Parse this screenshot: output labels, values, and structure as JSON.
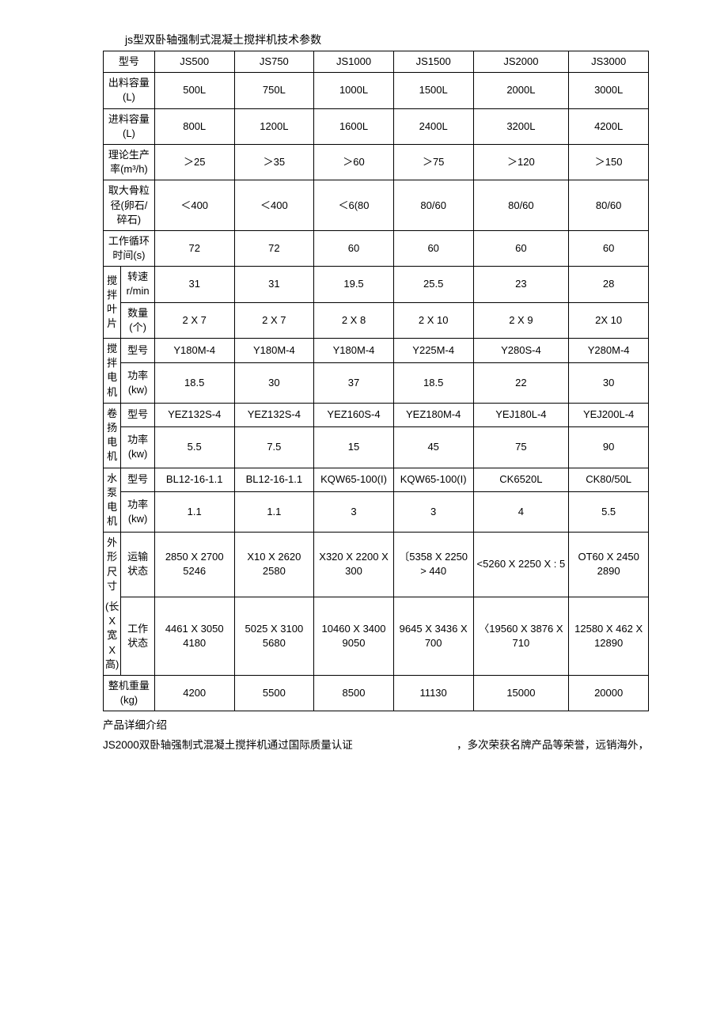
{
  "title": "js型双卧轴强制式混凝土搅拌机技术参数",
  "columns": {
    "label": "型号",
    "models": [
      "JS500",
      "JS750",
      "JS1000",
      "JS1500",
      "JS2000",
      "JS3000"
    ]
  },
  "rows": {
    "out_cap": {
      "label": "出料容量(L)",
      "v": [
        "500L",
        "750L",
        "1000L",
        "1500L",
        "2000L",
        "3000L"
      ]
    },
    "in_cap": {
      "label": "进料容量(L)",
      "v": [
        "800L",
        "1200L",
        "1600L",
        "2400L",
        "3200L",
        "4200L"
      ]
    },
    "theo": {
      "label": "理论生产率(m³/h)",
      "v": [
        "＞25",
        "＞35",
        "＞60",
        "＞75",
        "＞120",
        "＞150"
      ]
    },
    "agg": {
      "label": "取大骨粒径(卵石/碎石)",
      "v": [
        "＜400",
        "＜400",
        "＜6(80",
        "80/60",
        "80/60",
        "80/60"
      ]
    },
    "cycle": {
      "label": "工作循环时间(s)",
      "v": [
        "72",
        "72",
        "60",
        "60",
        "60",
        "60"
      ]
    },
    "blade_group": "搅拌叶片",
    "blade_speed": {
      "label": "转速r/min",
      "v": [
        "31",
        "31",
        "19.5",
        "25.5",
        "23",
        "28"
      ]
    },
    "blade_count": {
      "label": "数量(个)",
      "v": [
        "2 X 7",
        "2 X 7",
        "2 X 8",
        "2 X 10",
        "2 X 9",
        "2X 10"
      ]
    },
    "mix_motor_group": "搅拌电机",
    "mix_motor_model": {
      "label": "型号",
      "v": [
        "Y180M-4",
        "Y180M-4",
        "Y180M-4",
        "Y225M-4",
        "Y280S-4",
        "Y280M-4"
      ]
    },
    "mix_motor_power": {
      "label": "功率(kw)",
      "v": [
        "18.5",
        "30",
        "37",
        "18.5",
        "22",
        "30"
      ]
    },
    "hoist_motor_group": "卷扬电机",
    "hoist_motor_model": {
      "label": "型号",
      "v": [
        "YEZ132S-4",
        "YEZ132S-4",
        "YEZ160S-4",
        "YEZ180M-4",
        "YEJ180L-4",
        "YEJ200L-4"
      ]
    },
    "hoist_motor_power": {
      "label": "功率(kw)",
      "v": [
        "5.5",
        "7.5",
        "15",
        "45",
        "75",
        "90"
      ]
    },
    "pump_motor_group": "水泵电机",
    "pump_motor_model": {
      "label": "型号",
      "v": [
        "BL12-16-1.1",
        "BL12-16-1.1",
        "KQW65-100(I)",
        "KQW65-100(I)",
        "CK6520L",
        "CK80/50L"
      ]
    },
    "pump_motor_power": {
      "label": "功率(kw)",
      "v": [
        "1.1",
        "1.1",
        "3",
        "3",
        "4",
        "5.5"
      ]
    },
    "dim_group": "外形尺寸",
    "dim_trans": {
      "label": "运输状态",
      "v": [
        "2850 X 2700 5246",
        "X10 X 2620 2580",
        "X320 X 2200 X 300",
        "〔5358 X 2250 > 440",
        "<5260 X 2250 X : 5",
        "OT60 X 2450 2890"
      ]
    },
    "dim_group2": "(长X宽X高)",
    "dim_work": {
      "label": "工作状态",
      "v": [
        "4461 X 3050 4180",
        "5025 X 3100 5680",
        "10460 X 3400 9050",
        "9645 X 3436 X 700",
        "〈19560 X 3876 X 710",
        "12580 X 462 X 12890"
      ]
    },
    "weight": {
      "label": "整机重量(kg)",
      "v": [
        "4200",
        "5500",
        "8500",
        "11130",
        "15000",
        "20000"
      ]
    }
  },
  "footer": {
    "l1": "产品详细介绍",
    "l2a": "JS2000双卧轴强制式混凝土搅拌机通过国际质量认证",
    "l2b": "，多次荣获名牌产品等荣誉，远销海外，"
  },
  "style": {
    "border_color": "#000000",
    "bg_color": "#ffffff",
    "text_color": "#000000",
    "font_size": 13
  }
}
